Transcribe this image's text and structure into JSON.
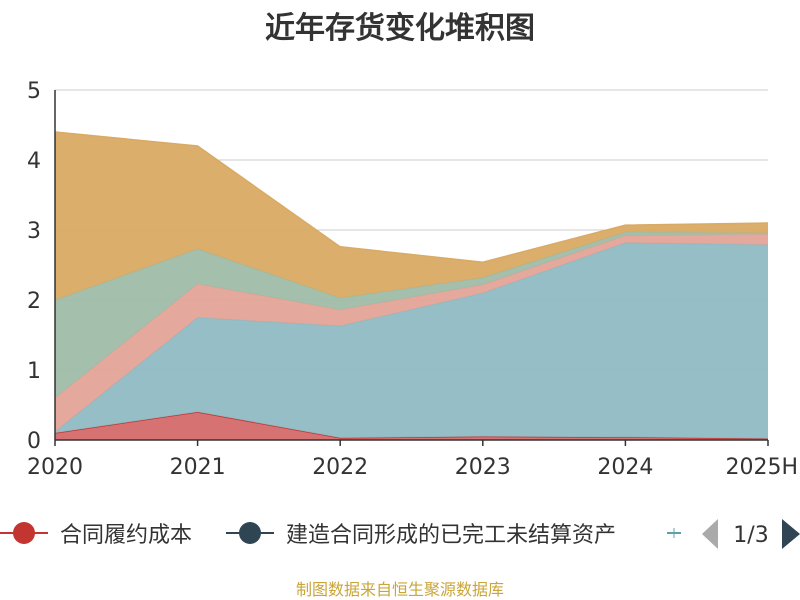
{
  "chart_data": {
    "type": "area",
    "stacked": true,
    "title": "近年存货变化堆积图",
    "xlabel": "",
    "ylabel": "",
    "categories": [
      "2020",
      "2021",
      "2022",
      "2023",
      "2024",
      "2025H"
    ],
    "ylim": [
      0,
      5
    ],
    "yticks": [
      0,
      1,
      2,
      3,
      4,
      5
    ],
    "grid": true,
    "series": [
      {
        "name": "合同履约成本",
        "color": "#d56a6a",
        "values": [
          0.1,
          0.4,
          0.03,
          0.05,
          0.04,
          0.02
        ]
      },
      {
        "name": "建造合同形成的已完工未结算资产",
        "color": "#8fbac3",
        "values": [
          0.02,
          1.35,
          1.6,
          2.05,
          2.78,
          2.77
        ]
      },
      {
        "name": "",
        "color": "#e3a497",
        "values": [
          0.48,
          0.48,
          0.23,
          0.12,
          0.1,
          0.15
        ]
      },
      {
        "name": "",
        "color": "#9fbca7",
        "values": [
          1.4,
          0.5,
          0.17,
          0.1,
          0.05,
          0.02
        ]
      },
      {
        "name": "",
        "color": "#d9aa64",
        "values": [
          2.4,
          1.47,
          0.73,
          0.22,
          0.1,
          0.14
        ]
      }
    ],
    "legend": {
      "position": "bottom",
      "visible_items": [
        {
          "label": "合同履约成本",
          "color": "#c23531"
        },
        {
          "label": "建造合同形成的已完工未结算资产",
          "color": "#2f4554"
        }
      ],
      "page": "1/3"
    }
  },
  "footer": {
    "source_text": "制图数据来自恒生聚源数据库"
  }
}
